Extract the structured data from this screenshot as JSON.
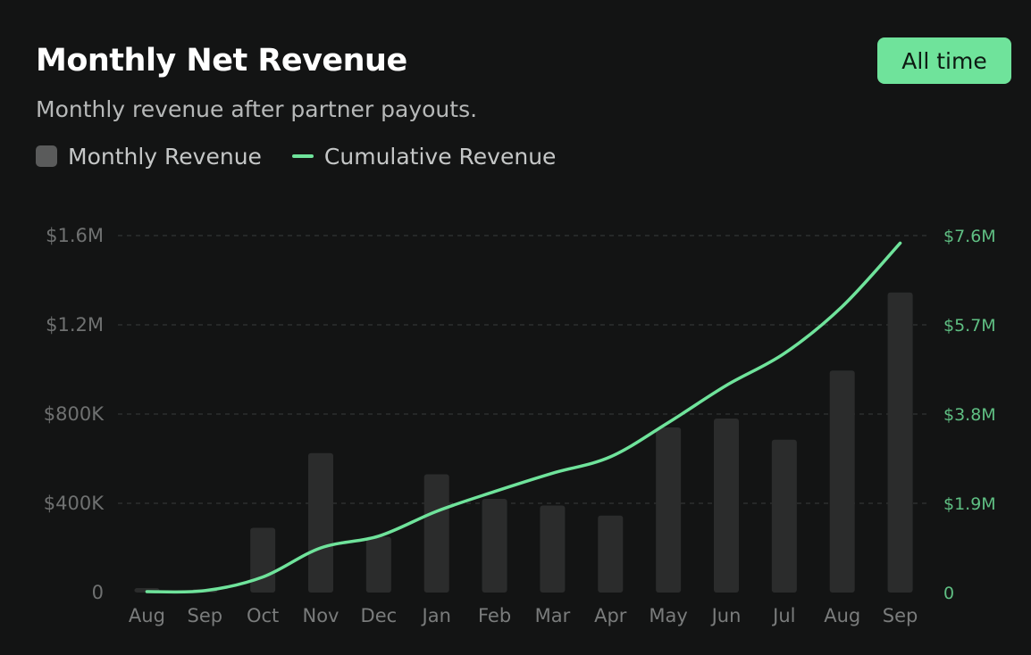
{
  "header": {
    "title": "Monthly Net Revenue",
    "subtitle": "Monthly revenue after partner payouts.",
    "range_button": "All time"
  },
  "legend": {
    "bar_label": "Monthly Revenue",
    "line_label": "Cumulative Revenue"
  },
  "colors": {
    "background": "#131414",
    "bar": "#2b2c2c",
    "line": "#6fe39b",
    "accent": "#6fe39b",
    "right_axis": "#5fbf83",
    "grid": "#3a3b3b"
  },
  "chart_data": {
    "type": "bar",
    "title": "Monthly Net Revenue",
    "subtitle": "Monthly revenue after partner payouts.",
    "categories": [
      "Aug",
      "Sep",
      "Oct",
      "Nov",
      "Dec",
      "Jan",
      "Feb",
      "Mar",
      "Apr",
      "May",
      "Jun",
      "Jul",
      "Aug",
      "Sep"
    ],
    "series": [
      {
        "name": "Monthly Revenue",
        "type": "bar",
        "axis": "left",
        "values": [
          20000,
          15000,
          290000,
          625000,
          250000,
          530000,
          420000,
          390000,
          345000,
          740000,
          780000,
          685000,
          995000,
          1345000
        ]
      },
      {
        "name": "Cumulative Revenue",
        "type": "line",
        "axis": "right",
        "values": [
          20000,
          40000,
          330000,
          950000,
          1200000,
          1730000,
          2150000,
          2540000,
          2890000,
          3620000,
          4410000,
          5090000,
          6090000,
          7440000
        ]
      }
    ],
    "ylim_left": [
      0,
      1600000
    ],
    "ylim_right": [
      0,
      7600000
    ],
    "yticks_left": [
      "0",
      "$400K",
      "$800K",
      "$1.2M",
      "$1.6M"
    ],
    "yticks_right": [
      "0",
      "$1.9M",
      "$3.8M",
      "$5.7M",
      "$7.6M"
    ],
    "grid": true,
    "legend_position": "top-left"
  }
}
